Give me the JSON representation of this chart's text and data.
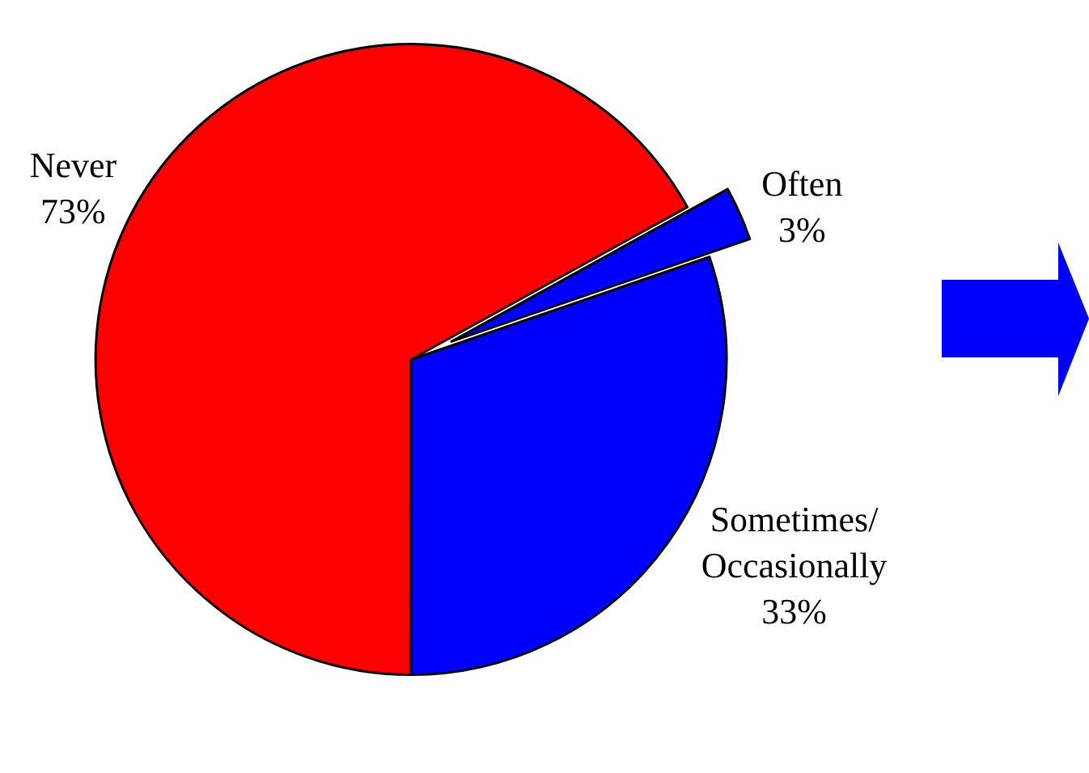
{
  "chart_data": {
    "type": "pie",
    "categories": [
      "Never",
      "Often",
      "Sometimes/Occasionally"
    ],
    "values": [
      73,
      3,
      33
    ],
    "colors": [
      "#ff0000",
      "#0000ff",
      "#0000ff"
    ],
    "value_labels": [
      "73%",
      "3%",
      "33%"
    ]
  }
}
